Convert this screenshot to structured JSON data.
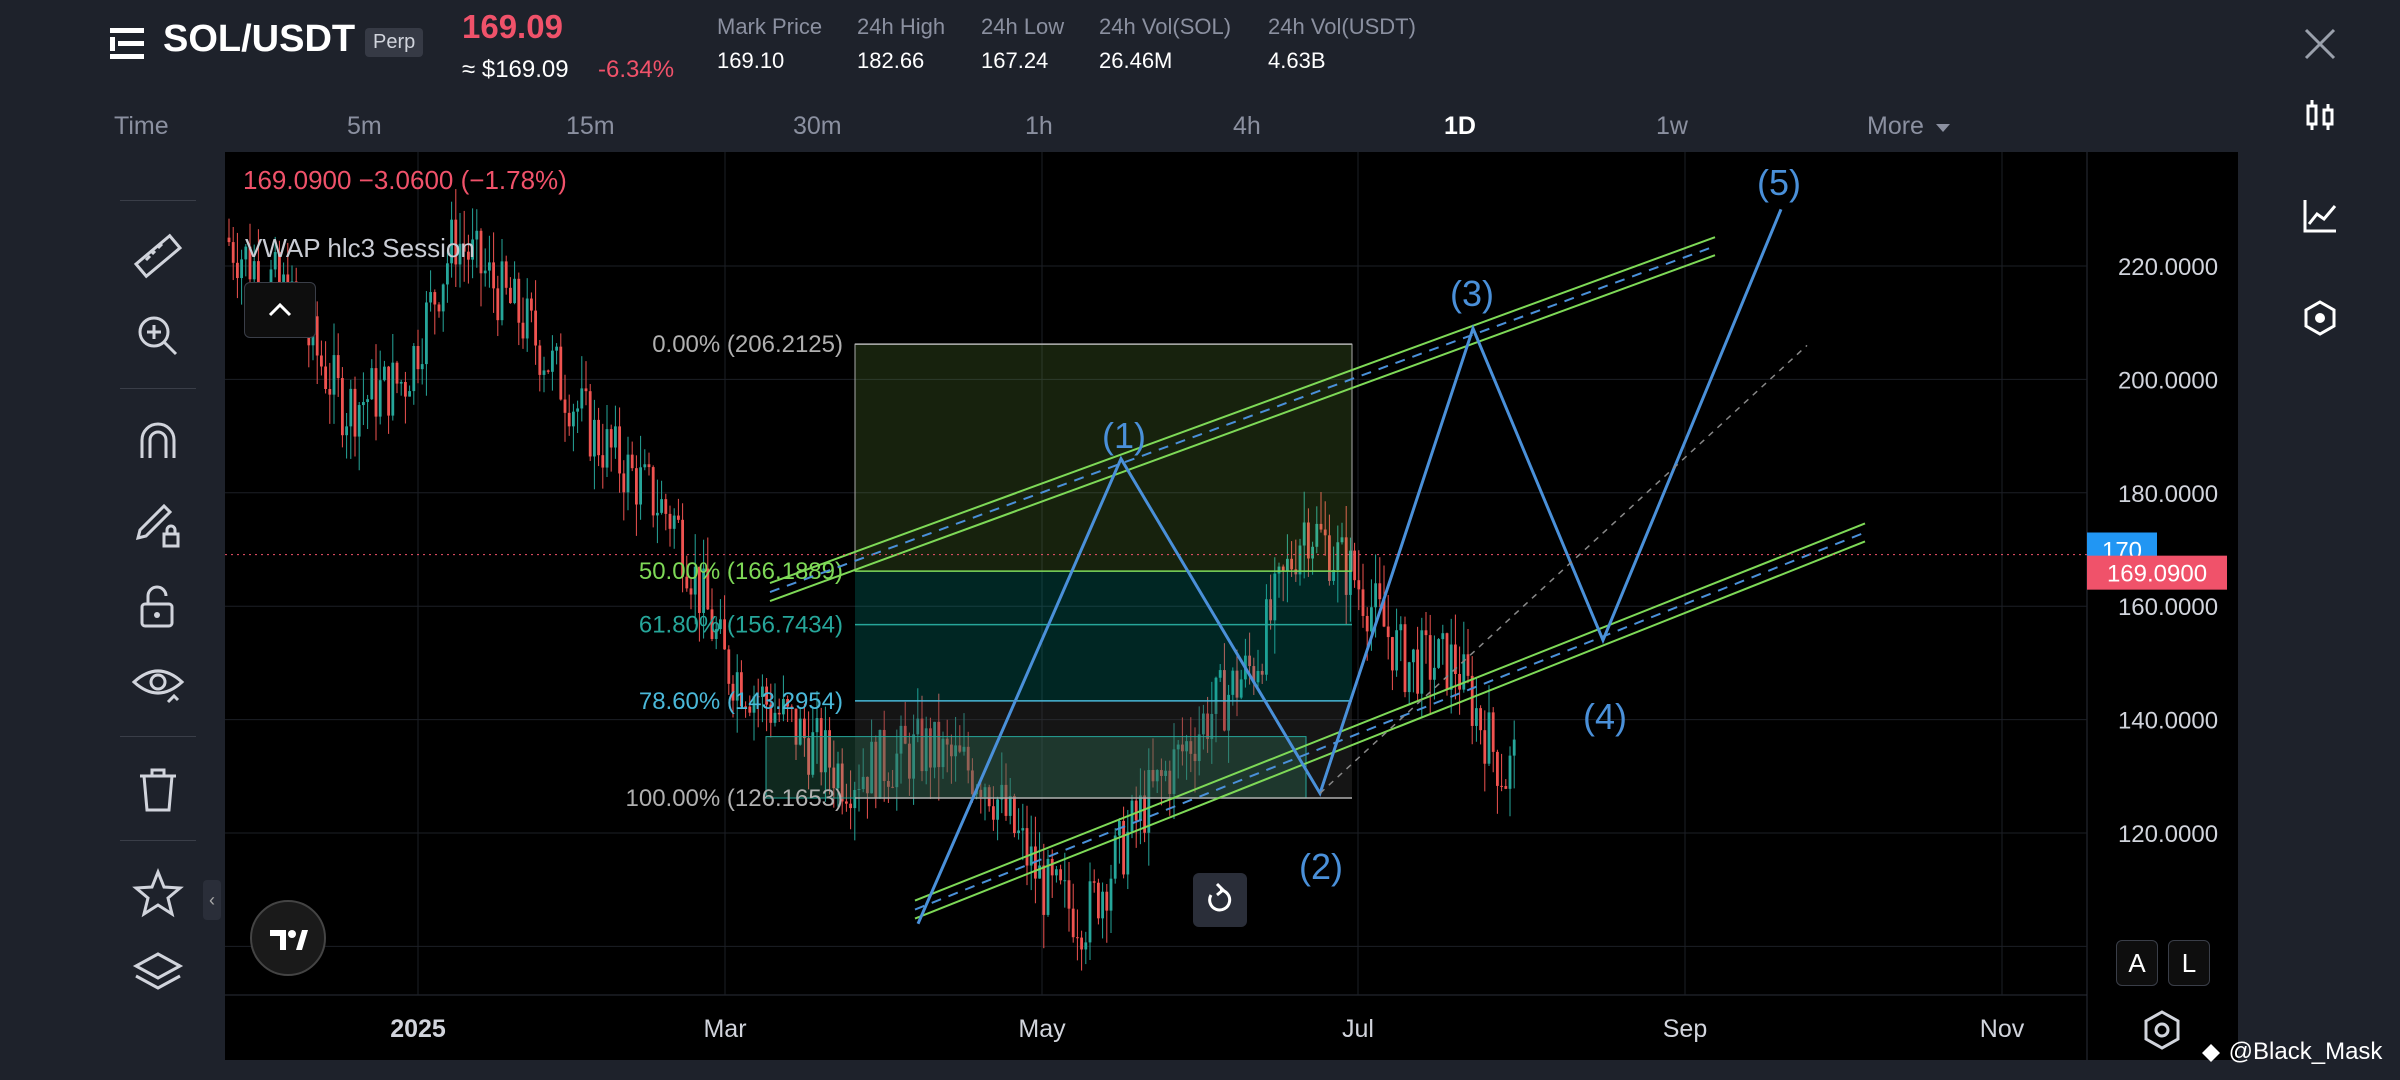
{
  "header": {
    "pair": "SOL/USDT",
    "contract_type": "Perp",
    "last_price": "169.09",
    "usd_price": "≈ $169.09",
    "change_pct": "-6.34%",
    "stats": [
      {
        "label": "Mark Price",
        "value": "169.10"
      },
      {
        "label": "24h High",
        "value": "182.66"
      },
      {
        "label": "24h Low",
        "value": "167.24"
      },
      {
        "label": "24h Vol(SOL)",
        "value": "26.46M"
      },
      {
        "label": "24h Vol(USDT)",
        "value": "4.63B"
      }
    ]
  },
  "timeframes": {
    "items": [
      "Time",
      "5m",
      "15m",
      "30m",
      "1h",
      "4h",
      "1D",
      "1w",
      "More"
    ],
    "active": "1D"
  },
  "left_toolbar": [
    "ruler-icon",
    "zoom-in-icon",
    "magnet-icon",
    "pencil-lock-icon",
    "unlock-icon",
    "eye-icon",
    "trash-icon",
    "star-icon",
    "layers-icon"
  ],
  "right_toolbar": [
    "candle-chart-icon",
    "line-chart-icon",
    "indicator-icon"
  ],
  "chart": {
    "overlay_text": "169.0900  −3.0600 (−1.78%)",
    "indicator_label": "VWAP hlc3 Session",
    "price_labels": [
      "220.0000",
      "200.0000",
      "180.0000",
      "160.0000",
      "140.0000",
      "120.0000"
    ],
    "time_labels": [
      "2025",
      "Mar",
      "May",
      "Jul",
      "Sep",
      "Nov"
    ],
    "alert_price": "170",
    "current_price": "169.0900",
    "fib_labels": [
      "0.00% (206.2125)",
      "50.00% (166.1889)",
      "61.80% (156.7434)",
      "78.60% (143.2954)",
      "100.00% (126.1653)"
    ],
    "wave_labels": [
      "(1)",
      "(2)",
      "(3)",
      "(4)",
      "(5)"
    ],
    "scale_buttons": [
      "A",
      "L"
    ],
    "colors": {
      "up": "#26a69a",
      "down": "#ef5350",
      "wave": "#4a90d9",
      "channel": "#7ed957",
      "price_line": "#f0526a",
      "alert": "#2196f3"
    }
  },
  "watermark": "@Black_Mask"
}
